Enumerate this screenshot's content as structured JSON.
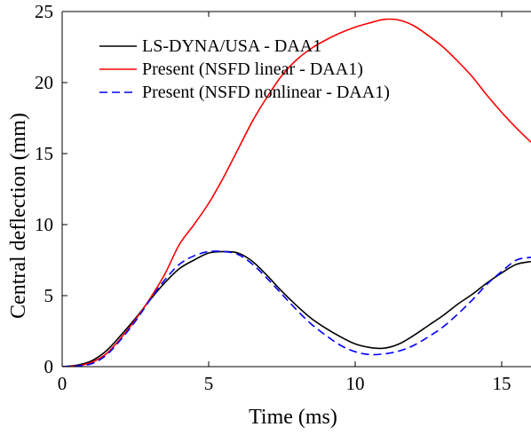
{
  "chart_data": {
    "type": "line",
    "title": "",
    "xlabel": "Time (ms)",
    "ylabel": "Central deflection (mm)",
    "xlim": [
      0,
      16
    ],
    "ylim": [
      0,
      25
    ],
    "xticks": [
      0,
      5,
      10,
      15
    ],
    "yticks": [
      0,
      5,
      10,
      15,
      20,
      25
    ],
    "grid": false,
    "legend": {
      "placement": "top-left",
      "box": false
    },
    "series": [
      {
        "name": "LS-DYNA/USA - DAA1",
        "color": "#000000",
        "dash": "solid",
        "x": [
          0,
          0.5,
          1.0,
          1.5,
          2.0,
          2.5,
          3.0,
          3.5,
          4.0,
          4.5,
          5.0,
          5.5,
          6.0,
          6.5,
          7.0,
          7.5,
          8.0,
          8.5,
          9.0,
          9.5,
          10.0,
          10.5,
          11.0,
          11.5,
          12.0,
          12.5,
          13.0,
          13.5,
          14.0,
          14.5,
          15.0,
          15.5,
          16.0
        ],
        "y": [
          0,
          0.1,
          0.4,
          1.1,
          2.2,
          3.4,
          4.7,
          5.9,
          6.9,
          7.5,
          8.0,
          8.1,
          8.0,
          7.4,
          6.4,
          5.3,
          4.3,
          3.4,
          2.7,
          2.1,
          1.6,
          1.35,
          1.3,
          1.6,
          2.2,
          2.9,
          3.6,
          4.4,
          5.1,
          5.9,
          6.6,
          7.2,
          7.4
        ]
      },
      {
        "name": "Present (NSFD linear - DAA1)",
        "color": "#ff0000",
        "dash": "solid",
        "x": [
          0,
          0.5,
          1.0,
          1.5,
          2.0,
          2.5,
          3.0,
          3.5,
          4.0,
          4.5,
          5.0,
          5.5,
          6.0,
          6.5,
          7.0,
          7.5,
          8.0,
          8.5,
          9.0,
          9.5,
          10.0,
          10.5,
          11.0,
          11.5,
          12.0,
          12.5,
          13.0,
          13.5,
          14.0,
          14.5,
          15.0,
          15.5,
          16.0
        ],
        "y": [
          0,
          0.05,
          0.3,
          0.9,
          2.0,
          3.3,
          4.8,
          6.5,
          8.6,
          10.0,
          11.5,
          13.3,
          15.3,
          17.3,
          19.0,
          20.5,
          21.6,
          22.4,
          23.0,
          23.5,
          23.9,
          24.2,
          24.45,
          24.4,
          24.0,
          23.3,
          22.5,
          21.5,
          20.4,
          19.1,
          17.9,
          16.8,
          15.8
        ]
      },
      {
        "name": "Present (NSFD nonlinear - DAA1)",
        "color": "#0000ff",
        "dash": "dashed",
        "x": [
          0,
          0.5,
          1.0,
          1.5,
          2.0,
          2.5,
          3.0,
          3.5,
          4.0,
          4.5,
          5.0,
          5.5,
          6.0,
          6.5,
          7.0,
          7.5,
          8.0,
          8.5,
          9.0,
          9.5,
          10.0,
          10.5,
          11.0,
          11.5,
          12.0,
          12.5,
          13.0,
          13.5,
          14.0,
          14.5,
          15.0,
          15.5,
          16.0
        ],
        "y": [
          0,
          0.05,
          0.2,
          0.8,
          1.9,
          3.2,
          4.7,
          6.1,
          7.2,
          7.8,
          8.1,
          8.1,
          7.9,
          7.2,
          6.2,
          5.1,
          4.0,
          3.0,
          2.2,
          1.5,
          1.05,
          0.85,
          0.9,
          1.1,
          1.5,
          2.1,
          2.8,
          3.7,
          4.7,
          5.8,
          6.7,
          7.5,
          7.7
        ]
      }
    ]
  }
}
